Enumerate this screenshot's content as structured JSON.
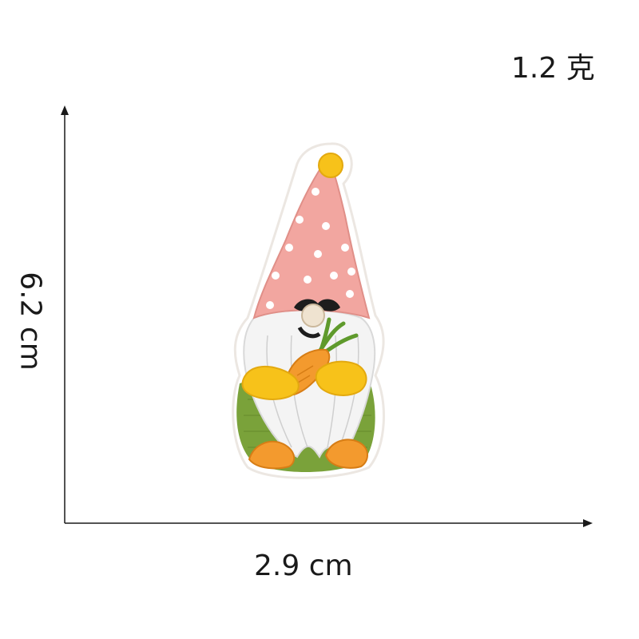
{
  "weight": "1.2 克",
  "dimensions": {
    "height": "6.2 cm",
    "width": "2.9 cm"
  },
  "colors": {
    "hat": "#f2a6a0",
    "hat_dots": "#ffffff",
    "pompom": "#f7c21a",
    "beard": "#f4f4f4",
    "body": "#7aa23a",
    "hands": "#f7c21a",
    "carrot": "#f39a2e",
    "carrot_leaves": "#5f9a2c",
    "feet": "#f39a2e",
    "nose": "#efe3d0",
    "mustache": "#1d1d1d"
  }
}
